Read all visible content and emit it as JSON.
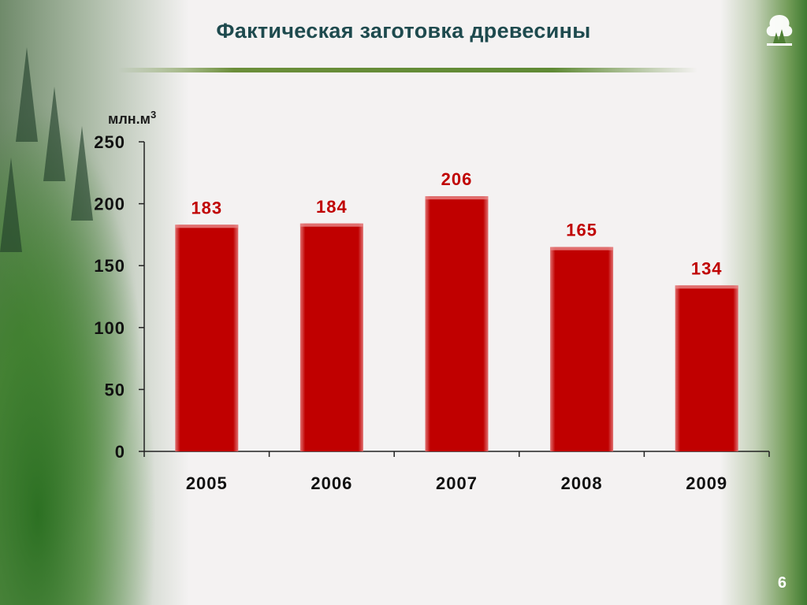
{
  "slide": {
    "title": "Фактическая заготовка древесины",
    "page_number": "6"
  },
  "colors": {
    "bar": "#c00000",
    "title": "#1e4a4e",
    "accent_green": "#5f8a35"
  },
  "icons": {
    "logo": "trees-logo-icon"
  },
  "chart_data": {
    "type": "bar",
    "unit_label": "млн.м",
    "unit_superscript": "3",
    "categories": [
      "2005",
      "2006",
      "2007",
      "2008",
      "2009"
    ],
    "values": [
      183,
      184,
      206,
      165,
      134
    ],
    "data_labels": [
      "183",
      "184",
      "206",
      "165",
      "134"
    ],
    "ylim": [
      0,
      250
    ],
    "yticks": [
      0,
      50,
      100,
      150,
      200,
      250
    ],
    "ytick_labels": [
      "0",
      "50",
      "100",
      "150",
      "200",
      "250"
    ],
    "grid": false,
    "legend": "none"
  }
}
